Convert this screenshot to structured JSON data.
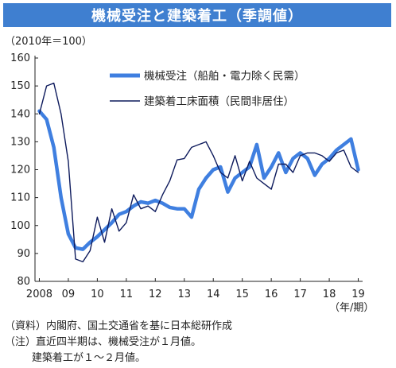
{
  "title": "機械受注と建築着工（季調値）",
  "chart_data": {
    "type": "line",
    "unit_label": "（2010年＝100）",
    "x_unit_label": "（年/期）",
    "x_tick_labels": [
      "2008",
      "09",
      "10",
      "11",
      "12",
      "13",
      "14",
      "15",
      "16",
      "17",
      "18",
      "19"
    ],
    "y_ticks": [
      80,
      90,
      100,
      110,
      120,
      130,
      140,
      150,
      160
    ],
    "ylim": [
      80,
      160
    ],
    "grid": false,
    "legend_position": "top-right",
    "colors": {
      "machinery": "#3f7fe0",
      "construction": "#0d1a5c"
    },
    "series": [
      {
        "name": "機械受注（船舶・電力除く民需）",
        "x": [
          2008.0,
          2008.25,
          2008.5,
          2008.75,
          2009.0,
          2009.25,
          2009.5,
          2009.75,
          2010.0,
          2010.25,
          2010.5,
          2010.75,
          2011.0,
          2011.25,
          2011.5,
          2011.75,
          2012.0,
          2012.25,
          2012.5,
          2012.75,
          2013.0,
          2013.25,
          2013.5,
          2013.75,
          2014.0,
          2014.25,
          2014.5,
          2014.75,
          2015.0,
          2015.25,
          2015.5,
          2015.75,
          2016.0,
          2016.25,
          2016.5,
          2016.75,
          2017.0,
          2017.25,
          2017.5,
          2017.75,
          2018.0,
          2018.25,
          2018.5,
          2018.75,
          2019.0
        ],
        "values": [
          141,
          138,
          128,
          110,
          97,
          92,
          91.5,
          94,
          96,
          98.5,
          101,
          104,
          105,
          107,
          108.5,
          108,
          109,
          108,
          106.5,
          106,
          106,
          103,
          113,
          117,
          120,
          121,
          112,
          117,
          119,
          121,
          129,
          117,
          121,
          126,
          119,
          124,
          126,
          124,
          118,
          122,
          124,
          127,
          129,
          131,
          120
        ]
      },
      {
        "name": "建築着工床面積（民間非居住）",
        "x": [
          2008.0,
          2008.25,
          2008.5,
          2008.75,
          2009.0,
          2009.25,
          2009.5,
          2009.75,
          2010.0,
          2010.25,
          2010.5,
          2010.75,
          2011.0,
          2011.25,
          2011.5,
          2011.75,
          2012.0,
          2012.25,
          2012.5,
          2012.75,
          2013.0,
          2013.25,
          2013.5,
          2013.75,
          2014.0,
          2014.25,
          2014.5,
          2014.75,
          2015.0,
          2015.25,
          2015.5,
          2015.75,
          2016.0,
          2016.25,
          2016.5,
          2016.75,
          2017.0,
          2017.25,
          2017.5,
          2017.75,
          2018.0,
          2018.25,
          2018.5,
          2018.75,
          2019.0
        ],
        "values": [
          140,
          150,
          151,
          140,
          123,
          88,
          87,
          91,
          103,
          94,
          106,
          98,
          101,
          111,
          106,
          107,
          105,
          111,
          116,
          123.5,
          124,
          128,
          129,
          130,
          125,
          119,
          117,
          125,
          116,
          123,
          117,
          115,
          113,
          122,
          122,
          119,
          125,
          126,
          126,
          125,
          123,
          126,
          127,
          121,
          119
        ]
      }
    ]
  },
  "notes": [
    "（資料）内閣府、国土交通省を基に日本総研作成",
    "（注）直近四半期は、機械受注が１月値。",
    "建築着工が１～２月値。"
  ]
}
